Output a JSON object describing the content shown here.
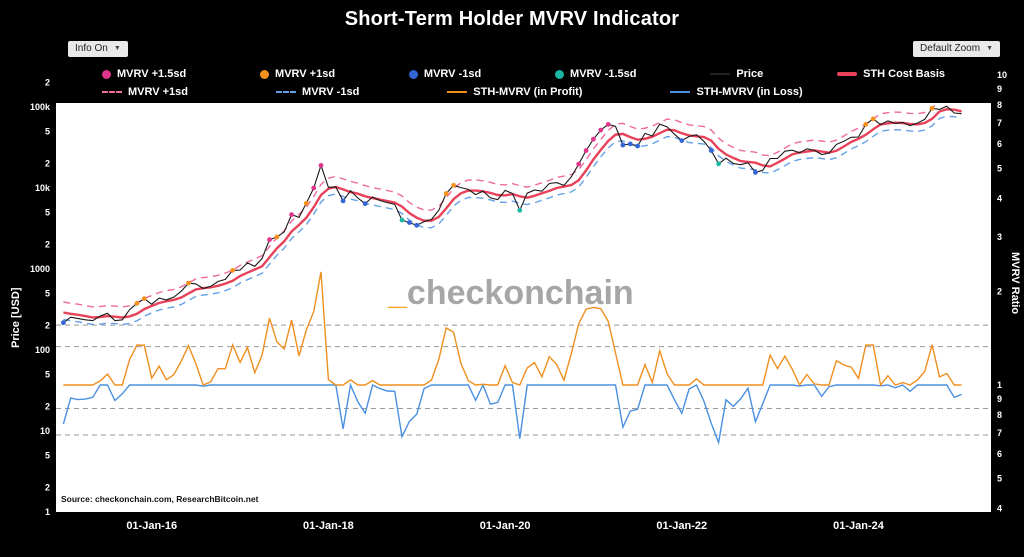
{
  "title": "Short-Term Holder MVRV Indicator",
  "controls": {
    "info_button": "Info On",
    "zoom_button": "Default Zoom",
    "dropdown_arrow": "▼"
  },
  "watermark": {
    "prefix": "_",
    "text": "checkonchain",
    "prefix_color": "#f7a21a",
    "text_color": "#a6a6a6"
  },
  "source_note": "Source: checkonchain.com, ResearchBitcoin.net",
  "axes": {
    "left": {
      "title": "Price [USD]",
      "scale": "log",
      "range": [
        1,
        316000
      ],
      "ticks": [
        {
          "v": 1,
          "label": "1"
        },
        {
          "v": 2,
          "label": "2"
        },
        {
          "v": 5,
          "label": "5"
        },
        {
          "v": 10,
          "label": "10"
        },
        {
          "v": 20,
          "label": "2"
        },
        {
          "v": 50,
          "label": "5"
        },
        {
          "v": 100,
          "label": "100"
        },
        {
          "v": 200,
          "label": "2"
        },
        {
          "v": 500,
          "label": "5"
        },
        {
          "v": 1000,
          "label": "1000"
        },
        {
          "v": 2000,
          "label": "2"
        },
        {
          "v": 5000,
          "label": "5"
        },
        {
          "v": 10000,
          "label": "10k"
        },
        {
          "v": 20000,
          "label": "2"
        },
        {
          "v": 50000,
          "label": "5"
        },
        {
          "v": 100000,
          "label": "100k"
        },
        {
          "v": 200000,
          "label": "2"
        }
      ]
    },
    "right": {
      "title": "MVRV Ratio",
      "scale": "log",
      "range": [
        0.4,
        11
      ],
      "ticks": [
        {
          "v": 10,
          "label": "10"
        },
        {
          "v": 9,
          "label": "9"
        },
        {
          "v": 8,
          "label": "8"
        },
        {
          "v": 7,
          "label": "7"
        },
        {
          "v": 6,
          "label": "6"
        },
        {
          "v": 5,
          "label": "5"
        },
        {
          "v": 4,
          "label": "4"
        },
        {
          "v": 3,
          "label": "3"
        },
        {
          "v": 2,
          "label": "2"
        },
        {
          "v": 1,
          "label": "1"
        },
        {
          "v": 0.9,
          "label": "9"
        },
        {
          "v": 0.8,
          "label": "8"
        },
        {
          "v": 0.7,
          "label": "7"
        },
        {
          "v": 0.6,
          "label": "6"
        },
        {
          "v": 0.5,
          "label": "5"
        },
        {
          "v": 0.4,
          "label": "4"
        }
      ]
    },
    "x": {
      "ticks": [
        {
          "label": "01-Jan-16",
          "month_index": 12
        },
        {
          "label": "01-Jan-18",
          "month_index": 36
        },
        {
          "label": "01-Jan-20",
          "month_index": 60
        },
        {
          "label": "01-Jan-22",
          "month_index": 84
        },
        {
          "label": "01-Jan-24",
          "month_index": 108
        }
      ]
    }
  },
  "legend": {
    "rows": [
      [
        {
          "label": "MVRV +1.5sd",
          "type": "dot",
          "color": "#e0368c"
        },
        {
          "label": "MVRV +1sd",
          "type": "dot",
          "color": "#f5921e"
        },
        {
          "label": "MVRV -1sd",
          "type": "dot",
          "color": "#3465d6"
        },
        {
          "label": "MVRV -1.5sd",
          "type": "dot",
          "color": "#1ab5a4"
        },
        {
          "label": "Price",
          "type": "line",
          "color": "#222222"
        },
        {
          "label": "STH Cost Basis",
          "type": "thick-line",
          "color": "#e8415a"
        }
      ],
      [
        {
          "label": "MVRV +1sd",
          "type": "dashed-line",
          "color": "#ef6a9f"
        },
        {
          "label": "MVRV -1sd",
          "type": "dashed-line",
          "color": "#64a0e8"
        },
        {
          "label": "STH-MVRV (in Profit)",
          "type": "line",
          "color": "#ef8f1f"
        },
        {
          "label": "STH-MVRV (in Loss)",
          "type": "line",
          "color": "#4a90e2"
        }
      ]
    ]
  },
  "chart_data": {
    "type": "line",
    "title": "Short-Term Holder MVRV Indicator",
    "x_start": "2015-01",
    "x_end": "2025-03",
    "frequency": "monthly",
    "price": [
      217,
      254,
      244,
      236,
      230,
      263,
      284,
      230,
      236,
      314,
      377,
      430,
      368,
      437,
      416,
      448,
      531,
      670,
      655,
      575,
      609,
      700,
      745,
      963,
      970,
      1190,
      1080,
      1350,
      2300,
      2480,
      2875,
      4700,
      4340,
      6470,
      10000,
      19000,
      10200,
      10300,
      6930,
      9250,
      7500,
      6400,
      7750,
      7010,
      6600,
      6300,
      4020,
      3740,
      3460,
      3850,
      4100,
      5320,
      8560,
      10800,
      10100,
      9600,
      8300,
      9150,
      7550,
      7200,
      9350,
      8550,
      5300,
      8630,
      9450,
      9140,
      11350,
      11650,
      10780,
      13800,
      19700,
      29000,
      40000,
      52000,
      61000,
      57750,
      34000,
      35000,
      33000,
      47150,
      43800,
      61300,
      57000,
      46200,
      38500,
      43200,
      45500,
      37700,
      29000,
      19900,
      23300,
      20050,
      19400,
      20500,
      15600,
      16550,
      23100,
      23150,
      28500,
      29250,
      27200,
      30480,
      29230,
      25930,
      26960,
      34500,
      37700,
      42250,
      42580,
      61200,
      71330,
      60640,
      67500,
      62680,
      64620,
      58970,
      63330,
      70200,
      96400,
      93430,
      102400,
      84350,
      82550
    ],
    "cost_basis": [
      290,
      280,
      272,
      262,
      252,
      255,
      262,
      258,
      252,
      260,
      280,
      320,
      350,
      380,
      400,
      415,
      445,
      500,
      560,
      580,
      595,
      620,
      660,
      715,
      820,
      900,
      985,
      1080,
      1400,
      1800,
      2200,
      2900,
      3500,
      4300,
      5800,
      8200,
      9800,
      10300,
      9600,
      8900,
      8500,
      7900,
      7500,
      7200,
      6900,
      6600,
      5900,
      4900,
      4300,
      3950,
      3950,
      4400,
      5600,
      7300,
      8600,
      9300,
      9300,
      9100,
      8700,
      8200,
      8100,
      8400,
      7900,
      7600,
      8000,
      8600,
      9200,
      10000,
      10400,
      10900,
      12500,
      16500,
      22500,
      29500,
      38000,
      45500,
      46500,
      42500,
      39500,
      40500,
      43000,
      47500,
      52500,
      51500,
      47500,
      44500,
      43500,
      42500,
      38500,
      30500,
      26000,
      23500,
      21500,
      21000,
      20500,
      19000,
      18500,
      20500,
      23000,
      26000,
      27400,
      28200,
      29000,
      28200,
      27300,
      28800,
      32500,
      37000,
      40500,
      45500,
      53000,
      61000,
      63000,
      64000,
      63500,
      61800,
      61000,
      63500,
      71500,
      88000,
      94000,
      92500,
      88500
    ],
    "derivations": {
      "sth_mvrv": "price / cost_basis",
      "bands": "cost_basis * band_multipliers"
    },
    "band_multipliers": {
      "plus1": 1.35,
      "minus1": 0.82
    },
    "marker_thresholds": {
      "plus15": 1.56,
      "plus1": 1.33,
      "minus1": 0.84,
      "minus15": 0.69
    },
    "levels": {
      "breakeven": 1.0,
      "dashed": [
        1.56,
        1.33,
        0.84,
        0.69
      ]
    },
    "colors": {
      "price": "#1a1a1a",
      "cost_basis": "#e8415a",
      "band_plus": "#ef6a9f",
      "band_minus": "#64a0e8",
      "osc_profit": "#ef8f1f",
      "osc_loss": "#4a90e2",
      "dot_plus15": "#e0368c",
      "dot_plus1": "#f5921e",
      "dot_minus1": "#3465d6",
      "dot_minus15": "#1ab5a4",
      "level_dash": "#999999",
      "plot_bg": "#ffffff",
      "figure_bg": "#000000"
    }
  }
}
